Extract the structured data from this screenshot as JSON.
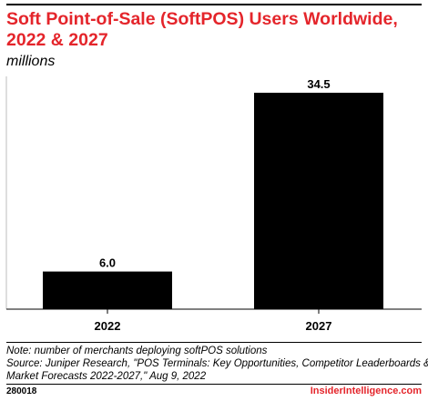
{
  "header": {
    "title": "Soft Point-of-Sale (SoftPOS) Users Worldwide, 2022 & 2027",
    "subtitle": "millions"
  },
  "chart_data": {
    "type": "bar",
    "categories": [
      "2022",
      "2027"
    ],
    "values": [
      6.0,
      34.5
    ],
    "value_labels": [
      "6.0",
      "34.5"
    ],
    "title": "Soft Point-of-Sale (SoftPOS) Users Worldwide, 2022 & 2027",
    "subtitle": "millions",
    "xlabel": "",
    "ylabel": "",
    "ylim": [
      0,
      34.5
    ],
    "grid": false,
    "legend": "none",
    "bar_color": "#000000"
  },
  "footer": {
    "note": "Note: number of merchants deploying softPOS solutions",
    "source_line1": "Source: Juniper Research, \"POS Terminals: Key Opportunities, Competitor Leaderboards &",
    "source_line2": "Market Forecasts 2022-2027,\" Aug 9, 2022",
    "chart_id": "280018",
    "brand": "InsiderIntelligence.com"
  },
  "colors": {
    "accent": "#e4252b",
    "bar": "#000000",
    "text": "#000000"
  }
}
